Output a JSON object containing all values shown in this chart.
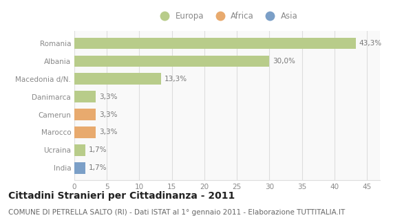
{
  "categories": [
    "India",
    "Ucraina",
    "Marocco",
    "Camerun",
    "Danimarca",
    "Macedonia d/N.",
    "Albania",
    "Romania"
  ],
  "values": [
    1.7,
    1.7,
    3.3,
    3.3,
    3.3,
    13.3,
    30.0,
    43.3
  ],
  "colors": [
    "#7b9fc7",
    "#b8cc8a",
    "#e8aa6e",
    "#e8aa6e",
    "#b8cc8a",
    "#b8cc8a",
    "#b8cc8a",
    "#b8cc8a"
  ],
  "labels": [
    "1,7%",
    "1,7%",
    "3,3%",
    "3,3%",
    "3,3%",
    "13,3%",
    "30,0%",
    "43,3%"
  ],
  "legend_labels": [
    "Europa",
    "Africa",
    "Asia"
  ],
  "legend_colors": [
    "#b8cc8a",
    "#e8aa6e",
    "#7b9fc7"
  ],
  "title": "Cittadini Stranieri per Cittadinanza - 2011",
  "subtitle": "COMUNE DI PETRELLA SALTO (RI) - Dati ISTAT al 1° gennaio 2011 - Elaborazione TUTTITALIA.IT",
  "xlim": [
    0,
    47
  ],
  "xticks": [
    0,
    5,
    10,
    15,
    20,
    25,
    30,
    35,
    40,
    45
  ],
  "background_color": "#ffffff",
  "plot_bg_color": "#f9f9f9",
  "grid_color": "#dddddd",
  "bar_height": 0.65,
  "title_fontsize": 10,
  "subtitle_fontsize": 7.5,
  "label_fontsize": 7.5,
  "tick_fontsize": 7.5,
  "legend_fontsize": 8.5,
  "label_color": "#777777",
  "tick_color": "#888888"
}
